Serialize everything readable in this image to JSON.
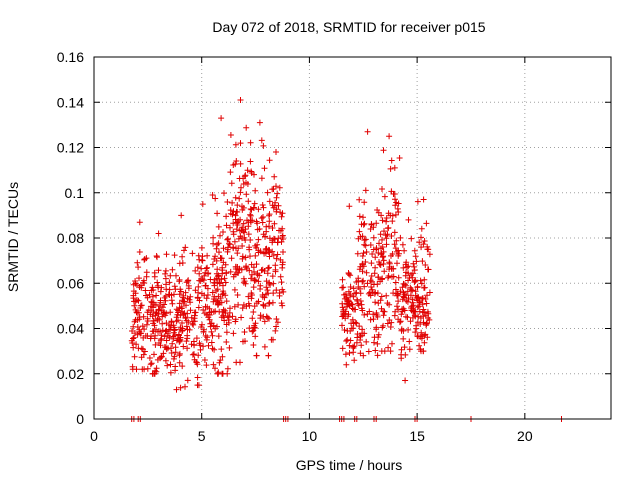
{
  "chart_data": {
    "type": "scatter",
    "title": "Day 072 of 2018, SRMTID for receiver p015",
    "xlabel": "GPS time / hours",
    "ylabel": "SRMTID / TECUs",
    "xlim": [
      0,
      24
    ],
    "ylim": [
      0,
      0.16
    ],
    "x_ticks": [
      0,
      5,
      10,
      15,
      20
    ],
    "x_tick_labels": [
      "0",
      "5",
      "10",
      "15",
      "20"
    ],
    "y_ticks": [
      0,
      0.02,
      0.04,
      0.06,
      0.08,
      0.1,
      0.12,
      0.14,
      0.16
    ],
    "y_tick_labels": [
      "0",
      "0.02",
      "0.04",
      "0.06",
      "0.08",
      "0.1",
      "0.12",
      "0.14",
      "0.16"
    ],
    "grid": true,
    "marker": "+",
    "color": "#e00000",
    "series": [
      {
        "name": "SRMTID",
        "clusters": [
          {
            "x_range": [
              1.75,
              2.5
            ],
            "y_center": 0.05,
            "y_spread": 0.013,
            "y_min": 0.022,
            "y_max": 0.087,
            "count": 80
          },
          {
            "x_range": [
              2.5,
              3.5
            ],
            "y_center": 0.042,
            "y_spread": 0.012,
            "y_min": 0.02,
            "y_max": 0.082,
            "count": 110
          },
          {
            "x_range": [
              3.5,
              4.6
            ],
            "y_center": 0.045,
            "y_spread": 0.013,
            "y_min": 0.013,
            "y_max": 0.09,
            "count": 120
          },
          {
            "x_range": [
              4.6,
              5.5
            ],
            "y_center": 0.047,
            "y_spread": 0.013,
            "y_min": 0.015,
            "y_max": 0.095,
            "count": 90
          },
          {
            "x_range": [
              5.5,
              6.3
            ],
            "y_center": 0.058,
            "y_spread": 0.02,
            "y_min": 0.02,
            "y_max": 0.133,
            "count": 110
          },
          {
            "x_range": [
              6.3,
              7.3
            ],
            "y_center": 0.078,
            "y_spread": 0.022,
            "y_min": 0.025,
            "y_max": 0.141,
            "count": 130
          },
          {
            "x_range": [
              7.3,
              8.1
            ],
            "y_center": 0.07,
            "y_spread": 0.018,
            "y_min": 0.028,
            "y_max": 0.131,
            "count": 100
          },
          {
            "x_range": [
              8.1,
              8.8
            ],
            "y_center": 0.075,
            "y_spread": 0.018,
            "y_min": 0.035,
            "y_max": 0.118,
            "count": 80
          },
          {
            "x_range": [
              11.5,
              12.2
            ],
            "y_center": 0.046,
            "y_spread": 0.01,
            "y_min": 0.024,
            "y_max": 0.094,
            "count": 70
          },
          {
            "x_range": [
              12.2,
              13.2
            ],
            "y_center": 0.062,
            "y_spread": 0.018,
            "y_min": 0.028,
            "y_max": 0.127,
            "count": 110
          },
          {
            "x_range": [
              13.2,
              14.2
            ],
            "y_center": 0.07,
            "y_spread": 0.02,
            "y_min": 0.03,
            "y_max": 0.125,
            "count": 110
          },
          {
            "x_range": [
              14.2,
              15.0
            ],
            "y_center": 0.055,
            "y_spread": 0.012,
            "y_min": 0.017,
            "y_max": 0.088,
            "count": 90
          },
          {
            "x_range": [
              15.0,
              15.6
            ],
            "y_center": 0.055,
            "y_spread": 0.014,
            "y_min": 0.03,
            "y_max": 0.097,
            "count": 70
          }
        ],
        "zero_markers_x": [
          1.75,
          1.85,
          2.05,
          2.15,
          8.8,
          8.9,
          9.0,
          11.4,
          11.5,
          11.6,
          12.1,
          12.2,
          13.0,
          13.1,
          14.9,
          15.0,
          17.5,
          21.7
        ]
      }
    ]
  }
}
